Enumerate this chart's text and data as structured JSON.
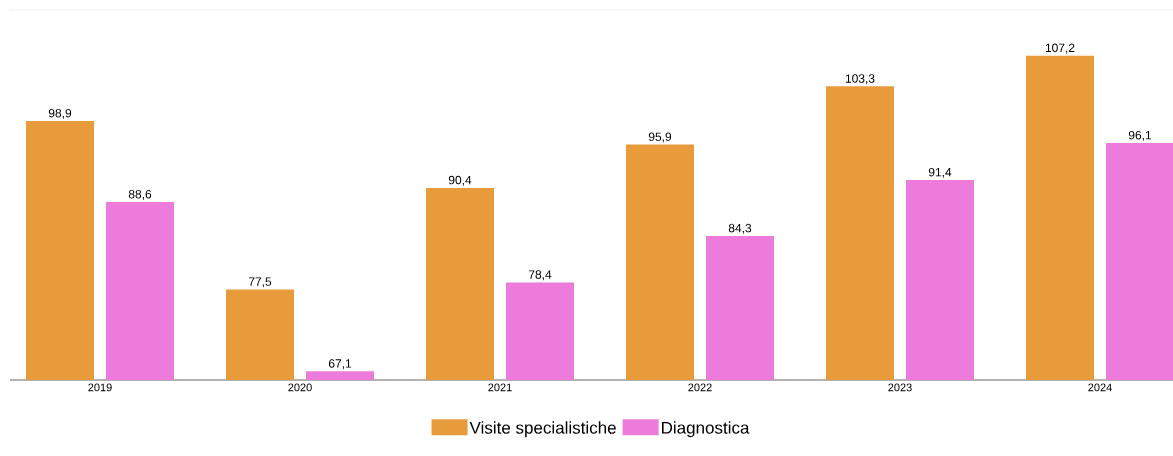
{
  "chart_data": {
    "type": "bar",
    "categories": [
      "2019",
      "2020",
      "2021",
      "2022",
      "2023",
      "2024"
    ],
    "series": [
      {
        "name": "Visite specialistiche",
        "color": "#e89b3a",
        "values": [
          98.9,
          77.5,
          90.4,
          95.9,
          103.3,
          107.2
        ],
        "value_labels": [
          "98,9",
          "77,5",
          "90,4",
          "95,9",
          "103,3",
          "107,2"
        ]
      },
      {
        "name": "Diagnostica",
        "color": "#ec7bdb",
        "values": [
          88.6,
          67.1,
          78.4,
          84.3,
          91.4,
          96.1
        ],
        "value_labels": [
          "88,6",
          "67,1",
          "78,4",
          "84,3",
          "91,4",
          "96,1"
        ]
      }
    ],
    "ylim": [
      66,
      113
    ],
    "legend": "bottom"
  }
}
